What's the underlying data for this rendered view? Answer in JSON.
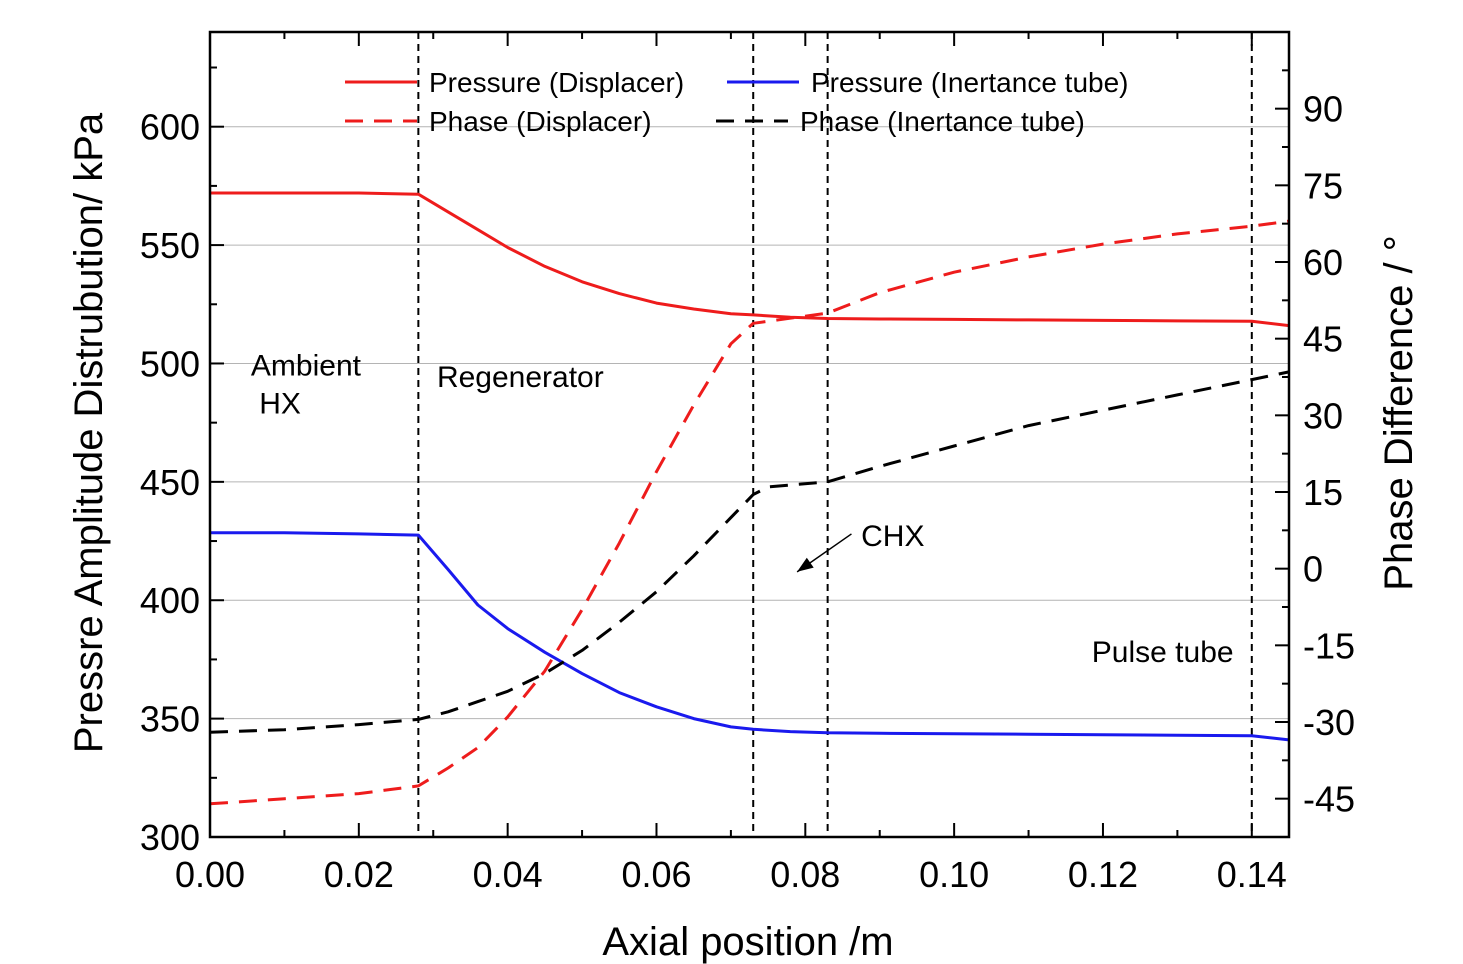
{
  "chart_data": {
    "type": "line",
    "xlabel": "Axial position /m",
    "ylabel_left": "Pressre Amplitude Distrubution/ kPa",
    "ylabel_right": "Phase Difference / °",
    "xlim": [
      0.0,
      0.145
    ],
    "ylim_left": [
      300,
      640
    ],
    "ylim_right": [
      -52.5,
      105
    ],
    "x_ticks": [
      0.0,
      0.02,
      0.04,
      0.06,
      0.08,
      0.1,
      0.12,
      0.14
    ],
    "x_tick_labels": [
      "0.00",
      "0.02",
      "0.04",
      "0.06",
      "0.08",
      "0.10",
      "0.12",
      "0.14"
    ],
    "y_left_ticks": [
      300,
      350,
      400,
      450,
      500,
      550,
      600
    ],
    "y_left_tick_labels": [
      "300",
      "350",
      "400",
      "450",
      "500",
      "550",
      "600"
    ],
    "y_right_ticks": [
      -45,
      -30,
      -15,
      0,
      15,
      30,
      45,
      60,
      75,
      90
    ],
    "y_right_tick_labels": [
      "-45",
      "-30",
      "-15",
      "0",
      "15",
      "30",
      "45",
      "60",
      "75",
      "90"
    ],
    "grid": "horizontal",
    "legend_placement": "top",
    "region_boundaries": [
      0.028,
      0.073,
      0.083,
      0.14
    ],
    "series": [
      {
        "name": "Pressure (Displacer)",
        "axis": "left",
        "style": "solid",
        "color": "#ee1c1c",
        "x": [
          0,
          0.01,
          0.02,
          0.028,
          0.032,
          0.036,
          0.04,
          0.045,
          0.05,
          0.055,
          0.06,
          0.065,
          0.07,
          0.073,
          0.078,
          0.083,
          0.09,
          0.1,
          0.11,
          0.12,
          0.13,
          0.14,
          0.145
        ],
        "y": [
          572,
          572,
          572,
          571.5,
          564,
          556.5,
          549,
          541,
          534.5,
          529.5,
          525.5,
          523,
          521,
          520.5,
          519.5,
          519,
          518.8,
          518.6,
          518.4,
          518.2,
          518,
          517.8,
          516
        ]
      },
      {
        "name": "Pressure (Inertance tube)",
        "axis": "left",
        "style": "solid",
        "color": "#1a1aee",
        "x": [
          0,
          0.01,
          0.02,
          0.028,
          0.032,
          0.036,
          0.04,
          0.045,
          0.05,
          0.055,
          0.06,
          0.065,
          0.07,
          0.073,
          0.078,
          0.083,
          0.09,
          0.1,
          0.11,
          0.12,
          0.13,
          0.14,
          0.145
        ],
        "y": [
          428.5,
          428.5,
          428,
          427.5,
          413,
          398,
          388,
          378,
          369,
          361,
          355,
          350,
          346.5,
          345.5,
          344.5,
          344,
          343.8,
          343.6,
          343.4,
          343.2,
          343,
          342.8,
          341
        ]
      },
      {
        "name": "Phase (Displacer)",
        "axis": "right",
        "style": "dashed",
        "color": "#ee1c1c",
        "x": [
          0,
          0.01,
          0.02,
          0.028,
          0.032,
          0.036,
          0.04,
          0.045,
          0.05,
          0.055,
          0.06,
          0.065,
          0.07,
          0.073,
          0.078,
          0.083,
          0.09,
          0.1,
          0.11,
          0.12,
          0.13,
          0.14,
          0.145
        ],
        "y": [
          -46,
          -45,
          -44,
          -42.5,
          -39,
          -35,
          -29,
          -20,
          -8,
          5,
          19,
          32,
          44,
          48,
          49,
          50,
          54,
          58,
          61,
          63.5,
          65.5,
          67,
          68
        ]
      },
      {
        "name": "Phase (Inertance tube)",
        "axis": "right",
        "style": "dashed",
        "color": "#000000",
        "x": [
          0,
          0.01,
          0.02,
          0.028,
          0.032,
          0.036,
          0.04,
          0.045,
          0.05,
          0.055,
          0.06,
          0.065,
          0.07,
          0.073,
          0.075,
          0.083,
          0.09,
          0.1,
          0.11,
          0.12,
          0.13,
          0.14,
          0.145
        ],
        "y": [
          -32,
          -31.5,
          -30.5,
          -29.5,
          -28,
          -26,
          -24,
          -20.5,
          -16,
          -10.5,
          -4.5,
          2.5,
          10,
          14.5,
          16,
          17,
          20,
          24,
          28,
          31,
          34,
          37,
          38.5
        ]
      }
    ],
    "annotations": [
      {
        "id": "ambient-hx",
        "lines": [
          "Ambient",
          " HX"
        ],
        "x": 0.0055,
        "y_left": 495
      },
      {
        "id": "regenerator",
        "lines": [
          "Regenerator"
        ],
        "x": 0.0305,
        "y_left": 490
      },
      {
        "id": "chx",
        "lines": [
          "CHX"
        ],
        "x": 0.0875,
        "y_left": 423,
        "arrow_to_x": 0.0789,
        "arrow_to_y_left": 412,
        "arrow_from_x": 0.0862,
        "arrow_from_y_left": 428
      },
      {
        "id": "pulse-tube",
        "lines": [
          "Pulse tube"
        ],
        "x": 0.1185,
        "y_left": 374
      }
    ]
  }
}
